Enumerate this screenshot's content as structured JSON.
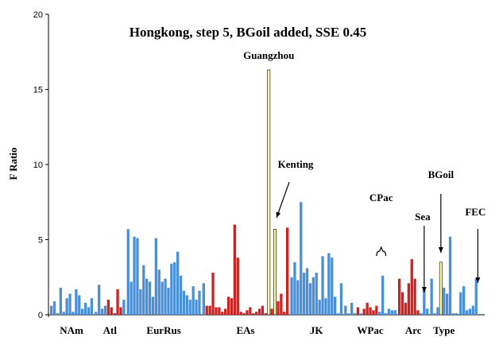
{
  "chart_data": {
    "type": "bar",
    "title": "Hongkong, step 5, BGoil added, SSE 0.45",
    "ylabel": "F Ratio",
    "xlabel": "",
    "ylim": [
      0,
      20
    ],
    "yticks": [
      0,
      5,
      10,
      15,
      20
    ],
    "grid": false,
    "colors": {
      "blue": "#4a90d9",
      "red": "#cc2222",
      "yellow": "#ffff99"
    },
    "groups": [
      {
        "label": "NAm",
        "values": [
          0.6,
          0.9,
          0.1,
          1.8,
          0.2,
          1.1,
          1.4,
          0.2,
          1.7,
          1.3,
          0.4,
          0.8,
          0.5,
          1.1
        ],
        "color": "blue"
      },
      {
        "label": "Atl",
        "values": [
          0.2,
          2.0,
          0.4,
          0.6,
          1.0,
          0.5,
          0.1,
          1.7,
          0.5,
          1.0
        ],
        "color": "mixed",
        "colorSeq": [
          "blue",
          "blue",
          "blue",
          "blue",
          "red",
          "red",
          "red",
          "red",
          "red",
          "blue"
        ]
      },
      {
        "label": "EurRus",
        "values": [
          5.7,
          2.2,
          5.2,
          5.1,
          1.7,
          3.3,
          2.4,
          2.2,
          1.2,
          5.1,
          3.0,
          2.2,
          2.4,
          1.8,
          3.4,
          3.5,
          4.2,
          2.6,
          1.6,
          1.3,
          1.0,
          1.9,
          1.0,
          1.6
        ],
        "color": "blue"
      },
      {
        "label": "EAs",
        "values": [
          2.1,
          0.6,
          0.6,
          2.8,
          0.5,
          0.5,
          0.2,
          0.4,
          1.2,
          1.1,
          6.0,
          3.8,
          0.2,
          0.1,
          0.3,
          0.5,
          0.1,
          0.2,
          0.4,
          0.6,
          0.1,
          16.3,
          0.4,
          5.7,
          0.9,
          1.4,
          0.2,
          5.8
        ],
        "color": "mixed",
        "colorSeq": [
          "blue",
          "red",
          "red",
          "red",
          "red",
          "red",
          "red",
          "red",
          "red",
          "red",
          "red",
          "red",
          "red",
          "red",
          "red",
          "red",
          "red",
          "red",
          "red",
          "red",
          "red",
          "yellow",
          "red",
          "yellow",
          "red",
          "red",
          "red",
          "red"
        ]
      },
      {
        "label": "JK",
        "values": [
          2.5,
          3.5,
          2.3,
          7.5,
          2.8,
          3.1,
          2.1,
          2.5,
          2.8,
          1.0,
          3.9,
          1.1,
          4.1,
          3.8,
          1.2,
          0.1,
          2.1
        ],
        "color": "blue"
      },
      {
        "label": "WPac",
        "values": [
          0.6,
          0.1,
          0.8,
          0.1,
          0.5,
          0.1,
          0.4,
          0.8,
          0.5,
          0.3,
          0.6,
          0.2,
          2.6,
          0.1,
          0.4,
          0.3,
          0.3
        ],
        "color": "mixed",
        "colorSeq": [
          "blue",
          "blue",
          "blue",
          "blue",
          "red",
          "blue",
          "red",
          "red",
          "red",
          "red",
          "red",
          "blue",
          "blue",
          "blue",
          "blue",
          "blue",
          "blue"
        ]
      },
      {
        "label": "Arc",
        "values": [
          2.4,
          1.5,
          0.8,
          2.1,
          3.7,
          2.4,
          0.3,
          0.1,
          1.8,
          0.4
        ],
        "color": "mixed",
        "colorSeq": [
          "red",
          "red",
          "red",
          "red",
          "red",
          "red",
          "red",
          "blue",
          "blue",
          "blue"
        ]
      },
      {
        "label": "Type",
        "values": [
          2.4,
          0.1,
          0.5,
          3.5,
          1.8,
          1.4,
          5.2,
          0.1,
          0.1
        ],
        "color": "mixed",
        "colorSeq": [
          "blue",
          "blue",
          "blue",
          "yellow",
          "blue",
          "blue",
          "blue",
          "blue",
          "blue"
        ]
      },
      {
        "label": "",
        "values": [
          1.5,
          1.9,
          0.3,
          0.4,
          0.6,
          2.4
        ],
        "color": "blue"
      }
    ],
    "annotations": [
      {
        "text": "Guangzhou"
      },
      {
        "text": "Kenting"
      },
      {
        "text": "CPac"
      },
      {
        "text": "Sea"
      },
      {
        "text": "BGoil"
      },
      {
        "text": "FEC"
      }
    ]
  }
}
